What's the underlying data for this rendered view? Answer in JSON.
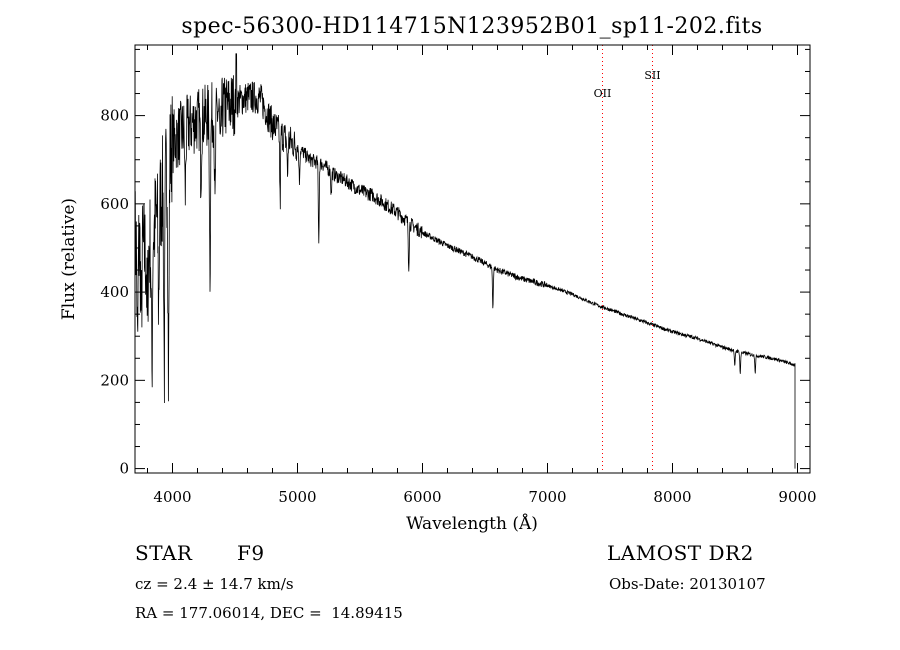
{
  "chart_data": {
    "type": "line",
    "title": "spec-56300-HD114715N123952B01_sp11-202.fits",
    "xlabel": "Wavelength (Å)",
    "ylabel": "Flux (relative)",
    "xlim": [
      3700,
      9100
    ],
    "ylim": [
      -10,
      960
    ],
    "x_ticks": [
      4000,
      5000,
      6000,
      7000,
      8000,
      9000
    ],
    "y_ticks": [
      0,
      200,
      400,
      600,
      800
    ],
    "grid": false,
    "line_color": "#000000",
    "marker_color": "#ff0000",
    "continuum": {
      "x": [
        3700,
        3800,
        3900,
        4000,
        4100,
        4200,
        4300,
        4400,
        4500,
        4600,
        4700,
        4800,
        4900,
        5000,
        5100,
        5200,
        5300,
        5400,
        5500,
        5600,
        5700,
        5800,
        5900,
        6000,
        6200,
        6400,
        6600,
        6800,
        7000,
        7200,
        7400,
        7600,
        7800,
        8000,
        8200,
        8400,
        8600,
        8800,
        8980
      ],
      "y": [
        520,
        480,
        600,
        740,
        770,
        790,
        800,
        815,
        830,
        842,
        840,
        780,
        750,
        730,
        700,
        690,
        665,
        650,
        630,
        620,
        600,
        580,
        555,
        535,
        505,
        480,
        450,
        430,
        415,
        395,
        370,
        350,
        330,
        310,
        295,
        275,
        260,
        250,
        235
      ]
    },
    "absorption_features": [
      {
        "x": 3720,
        "y": 260
      },
      {
        "x": 3750,
        "y": 340
      },
      {
        "x": 3798,
        "y": 330
      },
      {
        "x": 3835,
        "y": 220
      },
      {
        "x": 3889,
        "y": 380
      },
      {
        "x": 3934,
        "y": 230
      },
      {
        "x": 3968,
        "y": 220
      },
      {
        "x": 4102,
        "y": 620
      },
      {
        "x": 4227,
        "y": 670
      },
      {
        "x": 4300,
        "y": 450
      },
      {
        "x": 4340,
        "y": 580
      },
      {
        "x": 4383,
        "y": 700
      },
      {
        "x": 4861,
        "y": 600
      },
      {
        "x": 4920,
        "y": 660
      },
      {
        "x": 5015,
        "y": 650
      },
      {
        "x": 5170,
        "y": 520
      },
      {
        "x": 5270,
        "y": 620
      },
      {
        "x": 5890,
        "y": 460
      },
      {
        "x": 6563,
        "y": 365
      },
      {
        "x": 8498,
        "y": 230
      },
      {
        "x": 8542,
        "y": 215
      },
      {
        "x": 8662,
        "y": 218
      }
    ],
    "spike": {
      "x": 4510,
      "y": 940
    },
    "line_markers": [
      {
        "label": "OII",
        "x": 7440
      },
      {
        "label": "SII",
        "x": 7840
      }
    ]
  },
  "info": {
    "class": "STAR",
    "subclass": "F9",
    "survey": "LAMOST DR2",
    "cz": "cz = 2.4 ± 14.7 km/s",
    "obs_date": "Obs-Date: 20130107",
    "radec": "RA = 177.06014, DEC =  14.89415"
  }
}
